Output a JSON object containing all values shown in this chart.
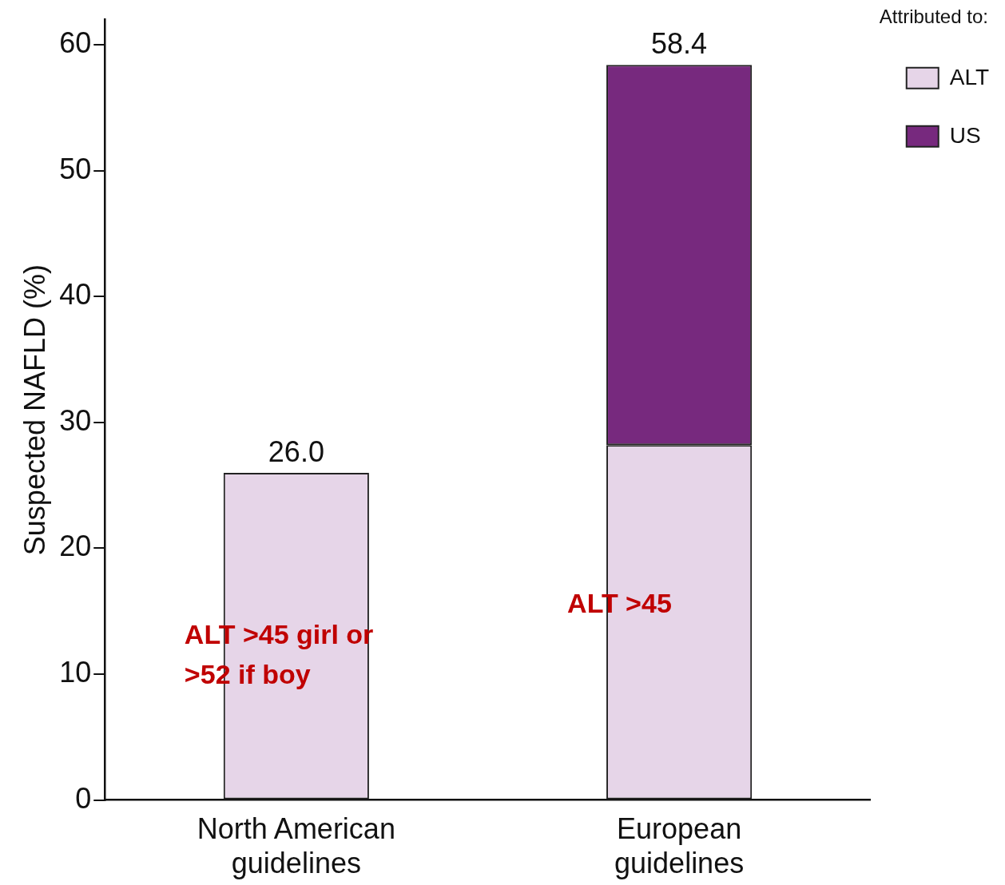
{
  "chart_data": {
    "type": "bar",
    "stacked": true,
    "ylabel": "Suspected NAFLD (%)",
    "legend_title": "Attributed to:",
    "legend": "top right",
    "categories": [
      "North American\nguidelines",
      "European\nguidelines"
    ],
    "series": [
      {
        "name": "ALT",
        "color": "#e6d5e8",
        "values": [
          26.0,
          28.2
        ]
      },
      {
        "name": "US",
        "color": "#77297e",
        "values": [
          null,
          30.2
        ]
      }
    ],
    "totals": [
      "26.0",
      "58.4"
    ],
    "ylim": [
      0,
      62
    ],
    "yticks": [
      0,
      10,
      20,
      30,
      40,
      50,
      60
    ],
    "grid": false,
    "annotations": [
      "ALT >45 girl or\n>52 if boy",
      "ALT >45"
    ]
  }
}
